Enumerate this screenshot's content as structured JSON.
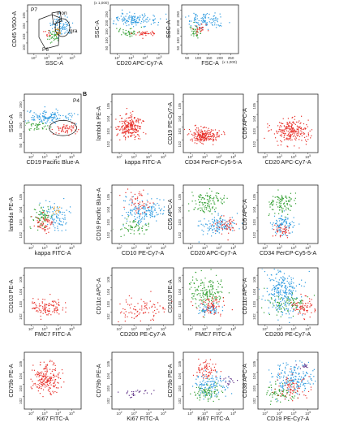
{
  "colors": {
    "red": "#e8312b",
    "blue": "#2f9be0",
    "green": "#34a033",
    "orange": "#f2a12a",
    "purple": "#5a2a84",
    "axis": "#2a2a2a"
  },
  "chart_data": [
    {
      "id": "r1c1",
      "type": "scatter",
      "xlabel": "SSC-A",
      "ylabel": "CD45 V500-A",
      "xscale": "log",
      "yscale": "log",
      "xticks": [
        "10^2",
        "10^3",
        "10^4",
        "10^5"
      ],
      "yticks": [
        "10^2",
        "10^3",
        "10^4",
        "10^5"
      ],
      "gates": [
        "mon",
        "gra",
        "P6",
        "P7"
      ],
      "clusters": [
        {
          "color": "blue",
          "x": 0.62,
          "y": 0.42,
          "sx": 0.1,
          "sy": 0.1,
          "n": 90
        },
        {
          "color": "green",
          "x": 0.48,
          "y": 0.62,
          "sx": 0.05,
          "sy": 0.07,
          "n": 40
        },
        {
          "color": "orange",
          "x": 0.55,
          "y": 0.55,
          "sx": 0.04,
          "sy": 0.05,
          "n": 20
        },
        {
          "color": "red",
          "x": 0.4,
          "y": 0.58,
          "sx": 0.05,
          "sy": 0.05,
          "n": 10
        }
      ]
    },
    {
      "id": "r1c2",
      "type": "scatter",
      "xlabel": "CD20 APC-Cy7-A",
      "ylabel": "SSC-A",
      "xscale": "log",
      "xticks": [
        "10^2",
        "10^3",
        "10^4",
        "10^5"
      ],
      "yticks": [
        "50",
        "100",
        "150",
        "200",
        "250"
      ],
      "yunit": "(x 1,000)",
      "clusters": [
        {
          "color": "blue",
          "x": 0.4,
          "y": 0.3,
          "sx": 0.2,
          "sy": 0.06,
          "n": 140
        },
        {
          "color": "green",
          "x": 0.3,
          "y": 0.55,
          "sx": 0.1,
          "sy": 0.04,
          "n": 40
        },
        {
          "color": "red",
          "x": 0.6,
          "y": 0.58,
          "sx": 0.12,
          "sy": 0.03,
          "n": 40
        }
      ]
    },
    {
      "id": "r1c3",
      "type": "scatter",
      "xlabel": "FSC-A",
      "ylabel": "SSC-A",
      "xticks": [
        "50",
        "100",
        "150",
        "200",
        "250"
      ],
      "xunit": "(x 1,000)",
      "yticks": [
        "50",
        "100",
        "150",
        "200",
        "250"
      ],
      "clusters": [
        {
          "color": "blue",
          "x": 0.4,
          "y": 0.3,
          "sx": 0.18,
          "sy": 0.08,
          "n": 110
        },
        {
          "color": "green",
          "x": 0.24,
          "y": 0.55,
          "sx": 0.06,
          "sy": 0.05,
          "n": 35
        },
        {
          "color": "red",
          "x": 0.3,
          "y": 0.48,
          "sx": 0.05,
          "sy": 0.05,
          "n": 25
        }
      ]
    },
    {
      "id": "r2c1",
      "type": "scatter",
      "xlabel": "CD19 Pacific Blue-A",
      "ylabel": "SSC-A",
      "xscale": "log",
      "xticks": [
        "10^2",
        "10^3",
        "10^4",
        "10^5"
      ],
      "yticks": [
        "50",
        "100",
        "150",
        "200",
        "250"
      ],
      "gates": [
        "P4"
      ],
      "clusters": [
        {
          "color": "blue",
          "x": 0.4,
          "y": 0.38,
          "sx": 0.25,
          "sy": 0.06,
          "n": 140
        },
        {
          "color": "green",
          "x": 0.22,
          "y": 0.55,
          "sx": 0.1,
          "sy": 0.04,
          "n": 45
        },
        {
          "color": "red",
          "x": 0.7,
          "y": 0.58,
          "sx": 0.12,
          "sy": 0.05,
          "n": 60
        }
      ]
    },
    {
      "id": "r2c2",
      "type": "scatter",
      "xlabel": "kappa FITC-A",
      "ylabel": "lambda PE-A",
      "xscale": "log",
      "yscale": "log",
      "xticks": [
        "10^2",
        "10^3",
        "10^4",
        "10^5"
      ],
      "yticks": [
        "10^2",
        "10^3",
        "10^4",
        "10^5"
      ],
      "clusters": [
        {
          "color": "red",
          "x": 0.28,
          "y": 0.55,
          "sx": 0.1,
          "sy": 0.1,
          "n": 230
        }
      ]
    },
    {
      "id": "r2c3",
      "type": "scatter",
      "xlabel": "CD34 PerCP-Cy5-5-A",
      "ylabel": "CD19 PE-Cy7-A",
      "xscale": "log",
      "yscale": "log",
      "xticks": [
        "10^2",
        "10^3",
        "10^4",
        "10^5"
      ],
      "yticks": [
        "10^2",
        "10^3",
        "10^4",
        "10^5"
      ],
      "clusters": [
        {
          "color": "red",
          "x": 0.35,
          "y": 0.7,
          "sx": 0.12,
          "sy": 0.06,
          "n": 220
        }
      ]
    },
    {
      "id": "r2c4",
      "type": "scatter",
      "xlabel": "CD20 APC-Cy7-A",
      "ylabel": "CD5 APC-A",
      "xscale": "log",
      "yscale": "log",
      "xticks": [
        "10^2",
        "10^3",
        "10^4",
        "10^5"
      ],
      "yticks": [
        "10^2",
        "10^3",
        "10^4",
        "10^5"
      ],
      "clusters": [
        {
          "color": "red",
          "x": 0.55,
          "y": 0.62,
          "sx": 0.15,
          "sy": 0.1,
          "n": 230
        }
      ]
    },
    {
      "id": "r3c1",
      "type": "scatter",
      "xlabel": "kappa FITC-A",
      "ylabel": "lambda PE-A",
      "xscale": "log",
      "yscale": "log",
      "xticks": [
        "10^2",
        "10^3",
        "10^4",
        "10^5"
      ],
      "yticks": [
        "10^2",
        "10^3",
        "10^4",
        "10^5"
      ],
      "clusters": [
        {
          "color": "blue",
          "x": 0.52,
          "y": 0.5,
          "sx": 0.1,
          "sy": 0.13,
          "n": 90
        },
        {
          "color": "green",
          "x": 0.3,
          "y": 0.55,
          "sx": 0.08,
          "sy": 0.1,
          "n": 70
        },
        {
          "color": "red",
          "x": 0.35,
          "y": 0.65,
          "sx": 0.07,
          "sy": 0.08,
          "n": 60
        },
        {
          "color": "orange",
          "x": 0.55,
          "y": 0.42,
          "sx": 0.05,
          "sy": 0.05,
          "n": 12
        }
      ]
    },
    {
      "id": "r3c2",
      "type": "scatter",
      "xlabel": "CD10 PE-Cy7-A",
      "ylabel": "CD19 Pacific Blue-A",
      "xscale": "log",
      "yscale": "log",
      "xticks": [
        "10^2",
        "10^3",
        "10^4",
        "10^5"
      ],
      "yticks": [
        "10^2",
        "10^3",
        "10^4",
        "10^5"
      ],
      "clusters": [
        {
          "color": "blue",
          "x": 0.52,
          "y": 0.45,
          "sx": 0.18,
          "sy": 0.12,
          "n": 170
        },
        {
          "color": "green",
          "x": 0.35,
          "y": 0.72,
          "sx": 0.15,
          "sy": 0.07,
          "n": 60
        },
        {
          "color": "red",
          "x": 0.4,
          "y": 0.3,
          "sx": 0.1,
          "sy": 0.1,
          "n": 50
        }
      ]
    },
    {
      "id": "r3c3",
      "type": "scatter",
      "xlabel": "CD20 APC-Cy7-A",
      "ylabel": "CD5 APC-A",
      "xscale": "log",
      "yscale": "log",
      "xticks": [
        "10^2",
        "10^3",
        "10^4",
        "10^5"
      ],
      "yticks": [
        "10^2",
        "10^3",
        "10^4",
        "10^5"
      ],
      "clusters": [
        {
          "color": "green",
          "x": 0.4,
          "y": 0.28,
          "sx": 0.13,
          "sy": 0.1,
          "n": 120
        },
        {
          "color": "blue",
          "x": 0.55,
          "y": 0.68,
          "sx": 0.15,
          "sy": 0.08,
          "n": 130
        },
        {
          "color": "red",
          "x": 0.7,
          "y": 0.68,
          "sx": 0.1,
          "sy": 0.07,
          "n": 50
        }
      ]
    },
    {
      "id": "r3c4",
      "type": "scatter",
      "xlabel": "CD34 PerCP-Cy5-5-A",
      "ylabel": "CD5 APC-A",
      "xscale": "log",
      "yscale": "log",
      "xticks": [
        "10^2",
        "10^3",
        "10^4",
        "10^5"
      ],
      "yticks": [
        "10^2",
        "10^3",
        "10^4",
        "10^5"
      ],
      "clusters": [
        {
          "color": "green",
          "x": 0.38,
          "y": 0.3,
          "sx": 0.1,
          "sy": 0.1,
          "n": 100
        },
        {
          "color": "blue",
          "x": 0.42,
          "y": 0.68,
          "sx": 0.1,
          "sy": 0.08,
          "n": 100
        },
        {
          "color": "red",
          "x": 0.4,
          "y": 0.78,
          "sx": 0.08,
          "sy": 0.06,
          "n": 40
        }
      ]
    },
    {
      "id": "r4c1",
      "type": "scatter",
      "xlabel": "FMC7 FITC-A",
      "ylabel": "CD103 PE-A",
      "xscale": "log",
      "yscale": "log",
      "xticks": [
        "10^2",
        "10^3",
        "10^4",
        "10^5"
      ],
      "yticks": [
        "10^2",
        "10^3",
        "10^4",
        "10^5"
      ],
      "clusters": [
        {
          "color": "red",
          "x": 0.35,
          "y": 0.7,
          "sx": 0.15,
          "sy": 0.08,
          "n": 110
        }
      ]
    },
    {
      "id": "r4c2",
      "type": "scatter",
      "xlabel": "CD200 PE-Cy7-A",
      "ylabel": "CD11c APC-A",
      "xscale": "log",
      "yscale": "log",
      "xticks": [
        "10^2",
        "10^3",
        "10^4",
        "10^5"
      ],
      "yticks": [
        "10^2",
        "10^3",
        "10^4",
        "10^5"
      ],
      "clusters": [
        {
          "color": "red",
          "x": 0.5,
          "y": 0.72,
          "sx": 0.2,
          "sy": 0.1,
          "n": 90
        }
      ]
    },
    {
      "id": "r4c3",
      "type": "scatter",
      "xlabel": "FMC7 FITC-A",
      "ylabel": "CD103 PE-A",
      "xscale": "log",
      "yscale": "log",
      "xticks": [
        "10^2",
        "10^3",
        "10^4",
        "10^5"
      ],
      "yticks": [
        "10^2",
        "10^3",
        "10^4",
        "10^5"
      ],
      "clusters": [
        {
          "color": "green",
          "x": 0.4,
          "y": 0.4,
          "sx": 0.15,
          "sy": 0.14,
          "n": 170
        },
        {
          "color": "blue",
          "x": 0.42,
          "y": 0.72,
          "sx": 0.1,
          "sy": 0.06,
          "n": 60
        },
        {
          "color": "red",
          "x": 0.45,
          "y": 0.68,
          "sx": 0.12,
          "sy": 0.08,
          "n": 70
        }
      ]
    },
    {
      "id": "r4c4",
      "type": "scatter",
      "xlabel": "CD200 PE-Cy7-A",
      "ylabel": "CD11c APC-A",
      "xscale": "log",
      "yscale": "log",
      "xticks": [
        "10^2",
        "10^3",
        "10^4",
        "10^5"
      ],
      "yticks": [
        "10^2",
        "10^3",
        "10^4",
        "10^5"
      ],
      "clusters": [
        {
          "color": "blue",
          "x": 0.4,
          "y": 0.4,
          "sx": 0.14,
          "sy": 0.2,
          "n": 260
        },
        {
          "color": "green",
          "x": 0.5,
          "y": 0.62,
          "sx": 0.18,
          "sy": 0.1,
          "n": 90
        },
        {
          "color": "red",
          "x": 0.75,
          "y": 0.68,
          "sx": 0.1,
          "sy": 0.08,
          "n": 70
        }
      ]
    },
    {
      "id": "r5c1",
      "type": "scatter",
      "xlabel": "Ki67 FITC-A",
      "ylabel": "CD79b PE-A",
      "xscale": "log",
      "yscale": "log",
      "xticks": [
        "10^2",
        "10^3",
        "10^4",
        "10^5"
      ],
      "yticks": [
        "10^2",
        "10^3",
        "10^4",
        "10^5"
      ],
      "clusters": [
        {
          "color": "red",
          "x": 0.38,
          "y": 0.45,
          "sx": 0.12,
          "sy": 0.13,
          "n": 200
        }
      ]
    },
    {
      "id": "r5c2",
      "type": "scatter",
      "xlabel": "Ki67 FITC-A",
      "ylabel": "CD79b PE-A",
      "xscale": "log",
      "yscale": "log",
      "xticks": [
        "10^2",
        "10^3",
        "10^4",
        "10^5"
      ],
      "yticks": [
        "10^2",
        "10^3",
        "10^4",
        "10^5"
      ],
      "clusters": [
        {
          "color": "purple",
          "x": 0.4,
          "y": 0.72,
          "sx": 0.12,
          "sy": 0.04,
          "n": 25
        }
      ]
    },
    {
      "id": "r5c3",
      "type": "scatter",
      "xlabel": "Ki67 FITC-A",
      "ylabel": "CD79b PE-A",
      "xscale": "log",
      "yscale": "log",
      "xticks": [
        "10^2",
        "10^3",
        "10^4",
        "10^5"
      ],
      "yticks": [
        "10^2",
        "10^3",
        "10^4",
        "10^5"
      ],
      "clusters": [
        {
          "color": "red",
          "x": 0.38,
          "y": 0.3,
          "sx": 0.1,
          "sy": 0.08,
          "n": 70
        },
        {
          "color": "blue",
          "x": 0.45,
          "y": 0.58,
          "sx": 0.14,
          "sy": 0.1,
          "n": 120
        },
        {
          "color": "green",
          "x": 0.4,
          "y": 0.7,
          "sx": 0.12,
          "sy": 0.08,
          "n": 80
        },
        {
          "color": "purple",
          "x": 0.75,
          "y": 0.5,
          "sx": 0.06,
          "sy": 0.05,
          "n": 15
        }
      ]
    },
    {
      "id": "r5c4",
      "type": "scatter",
      "xlabel": "CD19 PE-Cy7-A",
      "ylabel": "CD38 APC-A",
      "xscale": "log",
      "yscale": "log",
      "xticks": [
        "10^2",
        "10^3",
        "10^4",
        "10^5"
      ],
      "yticks": [
        "10^2",
        "10^3",
        "10^4",
        "10^5"
      ],
      "clusters": [
        {
          "color": "blue",
          "x": 0.55,
          "y": 0.45,
          "sx": 0.18,
          "sy": 0.13,
          "n": 200
        },
        {
          "color": "green",
          "x": 0.35,
          "y": 0.7,
          "sx": 0.15,
          "sy": 0.08,
          "n": 70
        },
        {
          "color": "red",
          "x": 0.58,
          "y": 0.62,
          "sx": 0.14,
          "sy": 0.1,
          "n": 70
        },
        {
          "color": "purple",
          "x": 0.75,
          "y": 0.25,
          "sx": 0.05,
          "sy": 0.02,
          "n": 12
        }
      ]
    }
  ],
  "panel_letter": "B",
  "axis_unit": "(x 1,000)"
}
